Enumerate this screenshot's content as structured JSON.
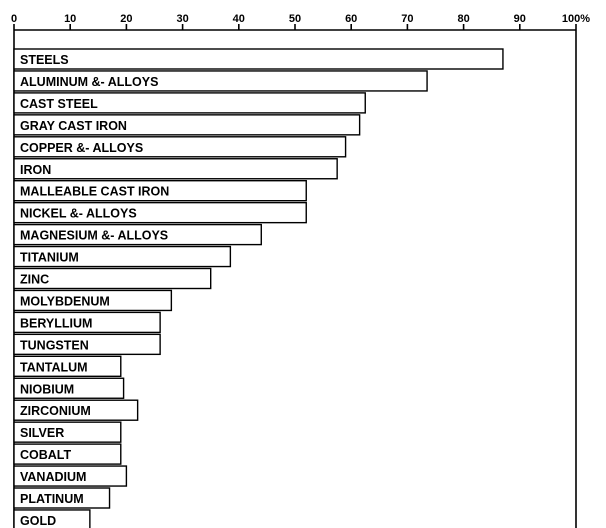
{
  "chart_data": {
    "type": "bar",
    "orientation": "horizontal",
    "xlim": [
      0,
      100
    ],
    "ticks": [
      0,
      10,
      20,
      30,
      40,
      50,
      60,
      70,
      80,
      90,
      100
    ],
    "tick_labels": [
      "0",
      "10",
      "20",
      "30",
      "40",
      "50",
      "60",
      "70",
      "80",
      "90",
      "100%"
    ],
    "categories": [
      "STEELS",
      "ALUMINUM &- ALLOYS",
      "CAST STEEL",
      "GRAY CAST IRON",
      "COPPER &- ALLOYS",
      "IRON",
      "MALLEABLE CAST IRON",
      "NICKEL &- ALLOYS",
      "MAGNESIUM &- ALLOYS",
      "TITANIUM",
      "ZINC",
      "MOLYBDENUM",
      "BERYLLIUM",
      "TUNGSTEN",
      "TANTALUM",
      "NIOBIUM",
      "ZIRCONIUM",
      "SILVER",
      "COBALT",
      "VANADIUM",
      "PLATINUM",
      "GOLD"
    ],
    "values": [
      87,
      73.5,
      62.5,
      61.5,
      59,
      57.5,
      52,
      52,
      44,
      38.5,
      35,
      28,
      26,
      26,
      19,
      19.5,
      22,
      19,
      19,
      20,
      17,
      13.5
    ],
    "grid": false,
    "legend": "none",
    "colors": {
      "bar_fill": "#ffffff",
      "bar_stroke": "#000000"
    }
  }
}
